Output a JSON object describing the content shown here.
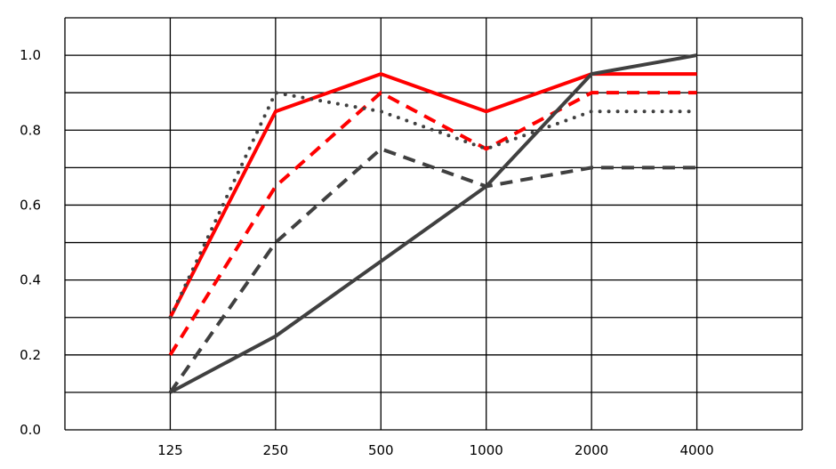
{
  "chart_data": {
    "type": "line",
    "title": "",
    "xlabel": "",
    "ylabel": "",
    "categories": [
      "125",
      "250",
      "500",
      "1000",
      "2000",
      "4000"
    ],
    "ylim": [
      0,
      1.1
    ],
    "yticks": [
      "0.0",
      "0.2",
      "0.4",
      "0.6",
      "0.8",
      "1.0"
    ],
    "grid": true,
    "series": [
      {
        "values": [
          0.3,
          0.85,
          0.95,
          0.85,
          0.95,
          0.95
        ],
        "color": "#ff0000",
        "style": "solid"
      },
      {
        "values": [
          0.2,
          0.65,
          0.9,
          0.75,
          0.9,
          0.9
        ],
        "color": "#ff0000",
        "style": "dashed"
      },
      {
        "values": [
          0.3,
          0.9,
          0.85,
          0.75,
          0.85,
          0.85
        ],
        "color": "#404040",
        "style": "dotted"
      },
      {
        "values": [
          0.1,
          0.5,
          0.75,
          0.65,
          0.7,
          0.7
        ],
        "color": "#404040",
        "style": "dashed"
      },
      {
        "values": [
          0.1,
          0.25,
          0.45,
          0.65,
          0.95,
          1.0
        ],
        "color": "#404040",
        "style": "solid"
      }
    ]
  }
}
